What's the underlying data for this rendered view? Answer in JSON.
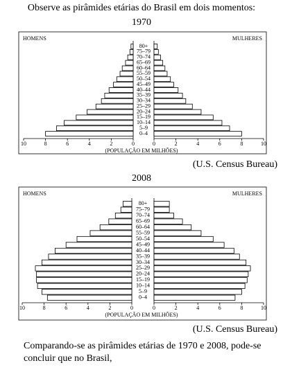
{
  "header": {
    "text": "Observe as pirâmides etárias do Brasil em dois momentos:"
  },
  "chart_data": [
    {
      "type": "pyramid",
      "title": "1970",
      "categories": [
        "0–4",
        "5–9",
        "10–14",
        "15–19",
        "20–24",
        "25–29",
        "30–34",
        "35–39",
        "40–44",
        "45–49",
        "50–54",
        "55–59",
        "60–64",
        "65–69",
        "70–74",
        "75–79",
        "80+"
      ],
      "series": [
        {
          "name": "HOMENS",
          "color": "#ffffff",
          "values": [
            8.0,
            7.0,
            6.3,
            5.2,
            4.2,
            3.4,
            2.9,
            2.6,
            2.2,
            1.8,
            1.5,
            1.2,
            1.0,
            0.7,
            0.5,
            0.3,
            0.2
          ]
        },
        {
          "name": "MULHERES",
          "color": "#ffffff",
          "values": [
            8.0,
            6.9,
            6.2,
            5.4,
            4.3,
            3.5,
            2.9,
            2.6,
            2.2,
            1.8,
            1.5,
            1.2,
            1.0,
            0.8,
            0.6,
            0.4,
            0.3
          ]
        }
      ],
      "xlabel": "(POPULAÇÃO EM MILHÕES)",
      "source": "(U.S. Census Bureau)",
      "xlim": [
        0,
        10
      ],
      "xticks": [
        0,
        2,
        4,
        6,
        8,
        10
      ]
    },
    {
      "type": "pyramid",
      "title": "2008",
      "categories": [
        "0–4",
        "5–9",
        "10–14",
        "15–19",
        "20–24",
        "25–29",
        "30–34",
        "35–39",
        "40–44",
        "45–49",
        "50–54",
        "55–59",
        "60–64",
        "65–69",
        "70–74",
        "75–79",
        "80+"
      ],
      "series": [
        {
          "name": "HOMENS",
          "color": "#ffffff",
          "values": [
            7.7,
            8.2,
            8.6,
            8.7,
            8.7,
            8.8,
            8.2,
            7.6,
            7.0,
            6.0,
            5.0,
            3.8,
            2.9,
            2.1,
            1.5,
            1.0,
            0.8
          ]
        },
        {
          "name": "MULHERES",
          "color": "#ffffff",
          "values": [
            7.4,
            8.0,
            8.3,
            8.5,
            8.6,
            8.8,
            8.4,
            7.8,
            7.3,
            6.4,
            5.4,
            4.3,
            3.4,
            2.6,
            1.8,
            1.4,
            1.4
          ]
        }
      ],
      "xlabel": "(POPULAÇÃO EM MILHÕES)",
      "source": "(U.S. Census Bureau)",
      "xlim": [
        0,
        10
      ],
      "xticks": [
        0,
        2,
        4,
        6,
        8,
        10
      ]
    }
  ],
  "footer": {
    "lines": [
      "Comparando-se as pirâmides etárias de 1970 e 2008, pode-se",
      "concluir que no Brasil,"
    ]
  }
}
